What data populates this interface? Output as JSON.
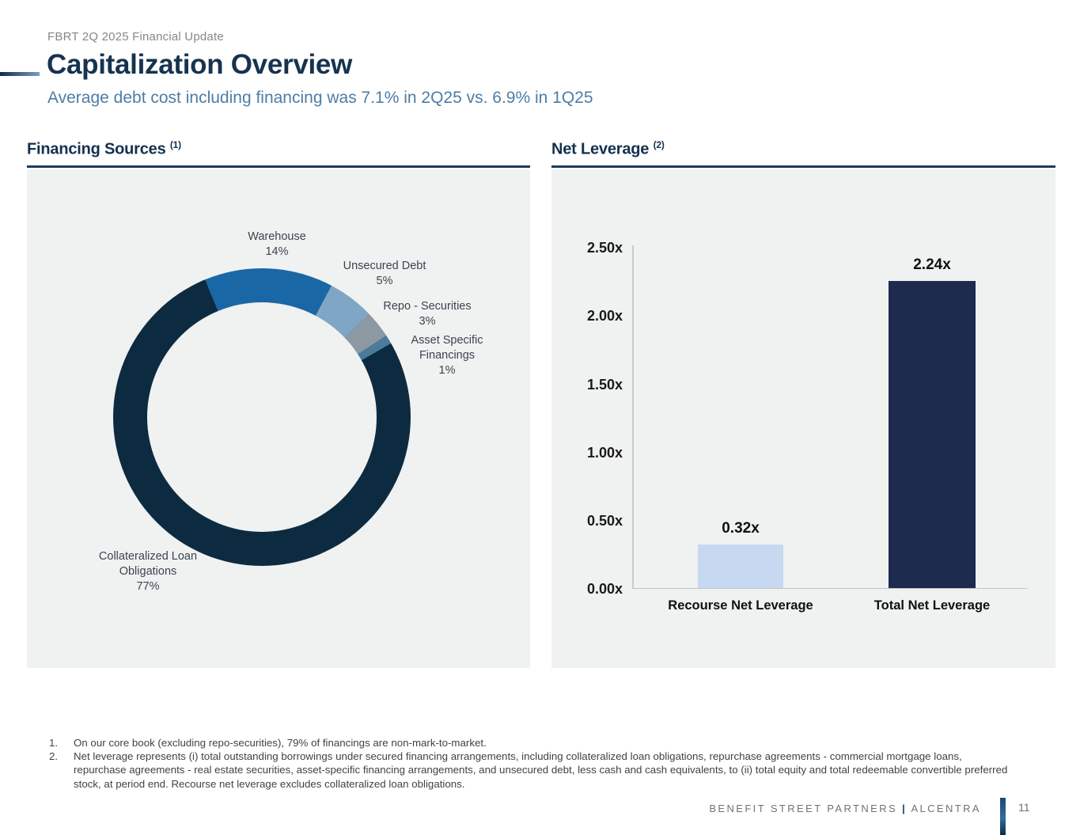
{
  "header": {
    "eyebrow": "FBRT 2Q 2025 Financial Update",
    "title": "Capitalization Overview",
    "subtitle": "Average debt cost including financing was 7.1% in 2Q25 vs. 6.9% in 1Q25"
  },
  "panels": {
    "financing": {
      "title": "Financing Sources",
      "sup": "(1)"
    },
    "leverage": {
      "title": "Net Leverage",
      "sup": "(2)"
    }
  },
  "chart_data": [
    {
      "type": "pie",
      "subtype": "donut",
      "title": "Financing Sources",
      "categories": [
        "Warehouse",
        "Unsecured Debt",
        "Repo - Securities",
        "Asset Specific Financings",
        "Collateralized Loan Obligations"
      ],
      "values": [
        14,
        5,
        3,
        1,
        77
      ],
      "unit": "%",
      "start_angle_deg": -22.5,
      "colors": [
        "#1a67a5",
        "#7fa6c4",
        "#8d99a2",
        "#4a7b9b",
        "#0d2b40"
      ],
      "slice_labels": [
        "Warehouse\n14%",
        "Unsecured Debt\n5%",
        "Repo - Securities\n3%",
        "Asset Specific\nFinancings\n1%",
        "Collateralized Loan\nObligations\n77%"
      ],
      "legend_position": "none"
    },
    {
      "type": "bar",
      "title": "Net Leverage",
      "categories": [
        "Recourse Net Leverage",
        "Total Net Leverage"
      ],
      "values": [
        0.32,
        2.24
      ],
      "value_labels": [
        "0.32x",
        "2.24x"
      ],
      "bar_colors": [
        "#c7d8f1",
        "#1c2b4e"
      ],
      "ylim": [
        0,
        2.5
      ],
      "yticks": [
        "2.50x",
        "2.00x",
        "1.50x",
        "1.00x",
        "0.50x",
        "0.00x"
      ],
      "grid": false,
      "legend_position": "none"
    }
  ],
  "footnotes": [
    {
      "num": "1.",
      "text": "On our core book (excluding repo-securities), 79% of financings are non-mark-to-market."
    },
    {
      "num": "2.",
      "text": "Net leverage represents (i) total outstanding borrowings under secured financing arrangements, including collateralized loan obligations, repurchase agreements - commercial mortgage loans, repurchase agreements - real estate securities, asset-specific financing arrangements, and unsecured debt, less cash and cash equivalents, to (ii) total equity and total redeemable convertible preferred stock, at period end. Recourse net leverage excludes collateralized loan obligations."
    }
  ],
  "footer": {
    "brand_left": "BENEFIT STREET PARTNERS",
    "brand_sep": "|",
    "brand_right": "ALCENTRA",
    "page": "11"
  },
  "colors": {
    "title_navy": "#16334f",
    "subtitle_blue": "#4d7da7",
    "rule_navy": "#1c3b5c",
    "panel_bg": "#f0f1f1",
    "accent_gradient_start": "#0d2d4d",
    "accent_gradient_end": "#7aa0c4"
  }
}
